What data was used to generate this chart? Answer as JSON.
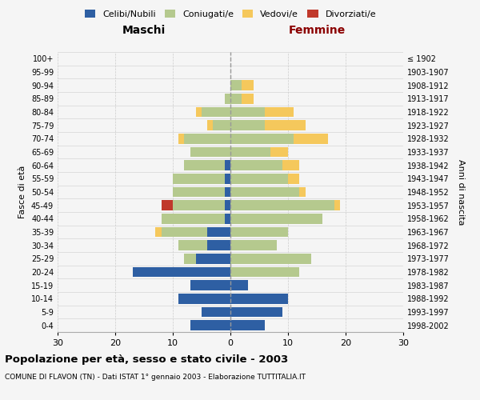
{
  "age_groups": [
    "0-4",
    "5-9",
    "10-14",
    "15-19",
    "20-24",
    "25-29",
    "30-34",
    "35-39",
    "40-44",
    "45-49",
    "50-54",
    "55-59",
    "60-64",
    "65-69",
    "70-74",
    "75-79",
    "80-84",
    "85-89",
    "90-94",
    "95-99",
    "100+"
  ],
  "birth_years": [
    "1998-2002",
    "1993-1997",
    "1988-1992",
    "1983-1987",
    "1978-1982",
    "1973-1977",
    "1968-1972",
    "1963-1967",
    "1958-1962",
    "1953-1957",
    "1948-1952",
    "1943-1947",
    "1938-1942",
    "1933-1937",
    "1928-1932",
    "1923-1927",
    "1918-1922",
    "1913-1917",
    "1908-1912",
    "1903-1907",
    "≤ 1902"
  ],
  "male": {
    "celibi": [
      7,
      5,
      9,
      7,
      17,
      6,
      4,
      4,
      1,
      1,
      1,
      1,
      1,
      0,
      0,
      0,
      0,
      0,
      0,
      0,
      0
    ],
    "coniugati": [
      0,
      0,
      0,
      0,
      0,
      2,
      5,
      8,
      11,
      9,
      9,
      9,
      7,
      7,
      8,
      3,
      5,
      1,
      0,
      0,
      0
    ],
    "vedovi": [
      0,
      0,
      0,
      0,
      0,
      0,
      0,
      1,
      0,
      0,
      0,
      0,
      0,
      0,
      1,
      1,
      1,
      0,
      0,
      0,
      0
    ],
    "divorziati": [
      0,
      0,
      0,
      0,
      0,
      0,
      0,
      0,
      0,
      2,
      0,
      0,
      0,
      0,
      0,
      0,
      0,
      0,
      0,
      0,
      0
    ]
  },
  "female": {
    "nubili": [
      6,
      9,
      10,
      3,
      0,
      0,
      0,
      0,
      0,
      0,
      0,
      0,
      0,
      0,
      0,
      0,
      0,
      0,
      0,
      0,
      0
    ],
    "coniugate": [
      0,
      0,
      0,
      0,
      12,
      14,
      8,
      10,
      16,
      18,
      12,
      10,
      9,
      7,
      11,
      6,
      6,
      2,
      2,
      0,
      0
    ],
    "vedove": [
      0,
      0,
      0,
      0,
      0,
      0,
      0,
      0,
      0,
      1,
      1,
      2,
      3,
      3,
      6,
      7,
      5,
      2,
      2,
      0,
      0
    ],
    "divorziate": [
      0,
      0,
      0,
      0,
      0,
      0,
      0,
      0,
      0,
      0,
      0,
      0,
      0,
      0,
      0,
      0,
      0,
      0,
      0,
      0,
      0
    ]
  },
  "colors": {
    "celibi": "#2E5FA3",
    "coniugati": "#B5C98E",
    "vedovi": "#F5C85C",
    "divorziati": "#C0392B"
  },
  "xlim": 30,
  "title": "Popolazione per età, sesso e stato civile - 2003",
  "subtitle": "COMUNE DI FLAVON (TN) - Dati ISTAT 1° gennaio 2003 - Elaborazione TUTTITALIA.IT",
  "ylabel_left": "Fasce di età",
  "ylabel_right": "Anni di nascita",
  "xlabel_left": "Maschi",
  "xlabel_right": "Femmine",
  "femmine_color": "#8B0000",
  "background_color": "#f5f5f5",
  "grid_color": "#cccccc"
}
